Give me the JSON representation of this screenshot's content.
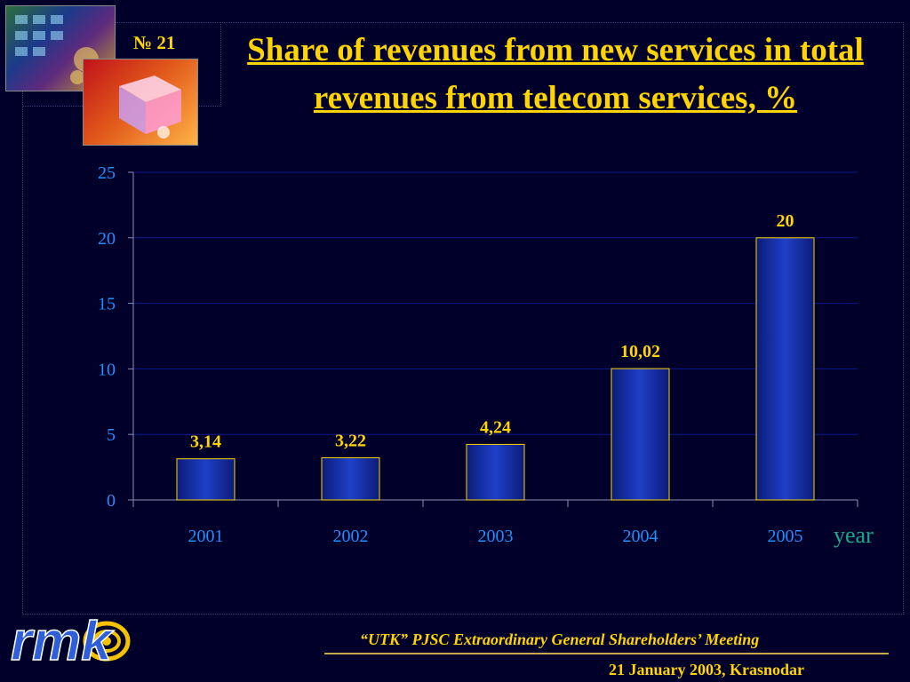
{
  "slide": {
    "number": "№ 21",
    "title": "Share of revenues from new services in total revenues from telecom services, %"
  },
  "logo": {
    "text": "rmk"
  },
  "footer": {
    "meeting": "“UTK” PJSC Extraordinary General Shareholders’ Meeting",
    "date": "21 January 2003, Krasnodar"
  },
  "colors": {
    "background": "#00002a",
    "title": "#ffd400",
    "bar": "#1f3fc8",
    "axis_text": "#1e90ff",
    "unit_text": "#18a88a",
    "data_label": "#ffd400"
  },
  "chart_data": {
    "type": "bar",
    "title": "Share of revenues from new services in total revenues from telecom services, %",
    "categories": [
      "2001",
      "2002",
      "2003",
      "2004",
      "2005"
    ],
    "values": [
      3.14,
      3.22,
      4.24,
      10.02,
      20
    ],
    "data_labels": [
      "3,14",
      "3,22",
      "4,24",
      "10,02",
      "20"
    ],
    "xlabel": "year",
    "ylabel": "",
    "ylim": [
      0,
      25
    ],
    "yticks": [
      0,
      5,
      10,
      15,
      20,
      25
    ],
    "grid": true,
    "legend": "none"
  }
}
